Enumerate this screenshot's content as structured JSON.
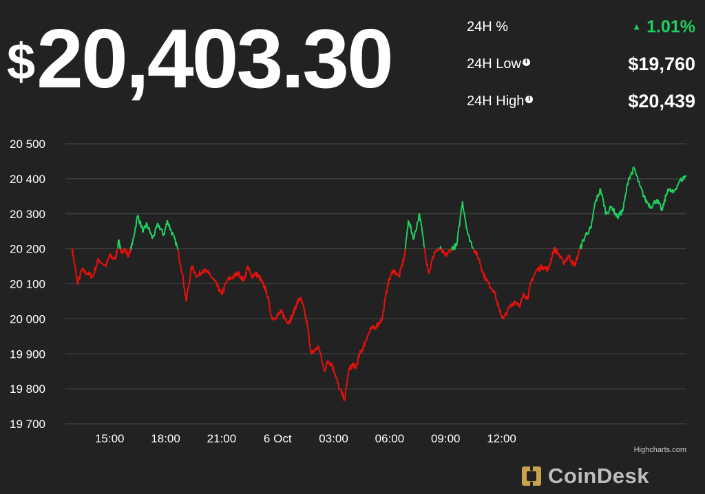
{
  "header": {
    "price_symbol": "$",
    "price_value": "20,403.30"
  },
  "stats": {
    "change_label": "24H %",
    "change_arrow": "▲",
    "change_value": "1.01%",
    "low_label": "24H Low",
    "low_value": "$19,760",
    "high_label": "24H High",
    "high_value": "$20,439",
    "info_glyph": "i"
  },
  "colors": {
    "background": "#222222",
    "up": "#1fcf5f",
    "down": "#e8100c",
    "grid": "#4a4a4a"
  },
  "credit": "Highcharts.com",
  "brand": {
    "name": "CoinDesk",
    "icon": "coindesk-logo-icon"
  },
  "chart_data": {
    "type": "line",
    "y_ticks": [
      "20 500",
      "20 400",
      "20 300",
      "20 200",
      "20 100",
      "20 000",
      "19 900",
      "19 800",
      "19 700"
    ],
    "x_ticks": [
      "15:00",
      "18:00",
      "21:00",
      "6 Oct",
      "03:00",
      "06:00",
      "09:00",
      "12:00"
    ],
    "ylim": [
      19700,
      20500
    ],
    "grid": "horizontal",
    "x_unit": "hours since 13:00 on 5 Oct",
    "reference_value": 20200,
    "color_rule": "green above reference, red below",
    "x": [
      0.0,
      0.1,
      0.3,
      0.5,
      0.8,
      1.1,
      1.4,
      1.8,
      2.0,
      2.3,
      2.5,
      2.6,
      2.8,
      3.0,
      3.2,
      3.5,
      3.8,
      4.0,
      4.3,
      4.6,
      4.9,
      5.1,
      5.3,
      5.6,
      5.9,
      6.1,
      6.4,
      6.7,
      7.0,
      7.3,
      7.6,
      7.8,
      8.0,
      8.3,
      8.6,
      8.9,
      9.2,
      9.4,
      9.6,
      9.8,
      10.0,
      10.2,
      10.4,
      10.7,
      11.0,
      11.2,
      11.4,
      11.6,
      11.8,
      12.0,
      12.2,
      12.4,
      12.6,
      12.8,
      13.0,
      13.2,
      13.5,
      13.7,
      13.9,
      14.1,
      14.3,
      14.6,
      14.8,
      15.0,
      15.2,
      15.4,
      15.6,
      15.8,
      16.0,
      16.3,
      16.6,
      16.9,
      17.2,
      17.5,
      17.8,
      18.0,
      18.3,
      18.6,
      18.9,
      19.1,
      19.4,
      19.7,
      20.0,
      20.3,
      20.6,
      20.9,
      21.2,
      21.5,
      21.8,
      22.0,
      22.3,
      22.6,
      22.9,
      23.1,
      23.4,
      23.7,
      24.0,
      24.2,
      24.4,
      24.6,
      24.9,
      25.2,
      25.5,
      25.8,
      26.0,
      26.3,
      26.6,
      26.9,
      27.2,
      27.5,
      27.8,
      28.0,
      28.3,
      28.6,
      28.9,
      29.2,
      29.5,
      29.8,
      30.1,
      30.4,
      30.7,
      31.0,
      31.3,
      31.6,
      31.9,
      32.2,
      32.5,
      32.9
    ],
    "y": [
      20200,
      20160,
      20100,
      20140,
      20130,
      20120,
      20170,
      20150,
      20180,
      20170,
      20225,
      20190,
      20200,
      20180,
      20210,
      20295,
      20250,
      20270,
      20230,
      20270,
      20240,
      20280,
      20250,
      20210,
      20130,
      20050,
      20150,
      20120,
      20140,
      20130,
      20110,
      20090,
      20070,
      20110,
      20120,
      20130,
      20110,
      20150,
      20120,
      20130,
      20120,
      20100,
      20080,
      20000,
      20010,
      20020,
      20000,
      19990,
      20010,
      20040,
      20060,
      20030,
      19980,
      19900,
      19910,
      19920,
      19850,
      19880,
      19870,
      19840,
      19800,
      19770,
      19850,
      19870,
      19860,
      19900,
      19920,
      19950,
      19970,
      19980,
      20000,
      20100,
      20140,
      20120,
      20180,
      20280,
      20230,
      20300,
      20190,
      20130,
      20190,
      20200,
      20180,
      20200,
      20210,
      20335,
      20240,
      20200,
      20170,
      20130,
      20100,
      20080,
      20020,
      20000,
      20030,
      20050,
      20040,
      20070,
      20060,
      20110,
      20140,
      20150,
      20140,
      20200,
      20190,
      20160,
      20180,
      20150,
      20200,
      20240,
      20260,
      20330,
      20370,
      20300,
      20320,
      20290,
      20310,
      20400,
      20430,
      20380,
      20340,
      20320,
      20340,
      20310,
      20370,
      20360,
      20390,
      20410
    ]
  }
}
